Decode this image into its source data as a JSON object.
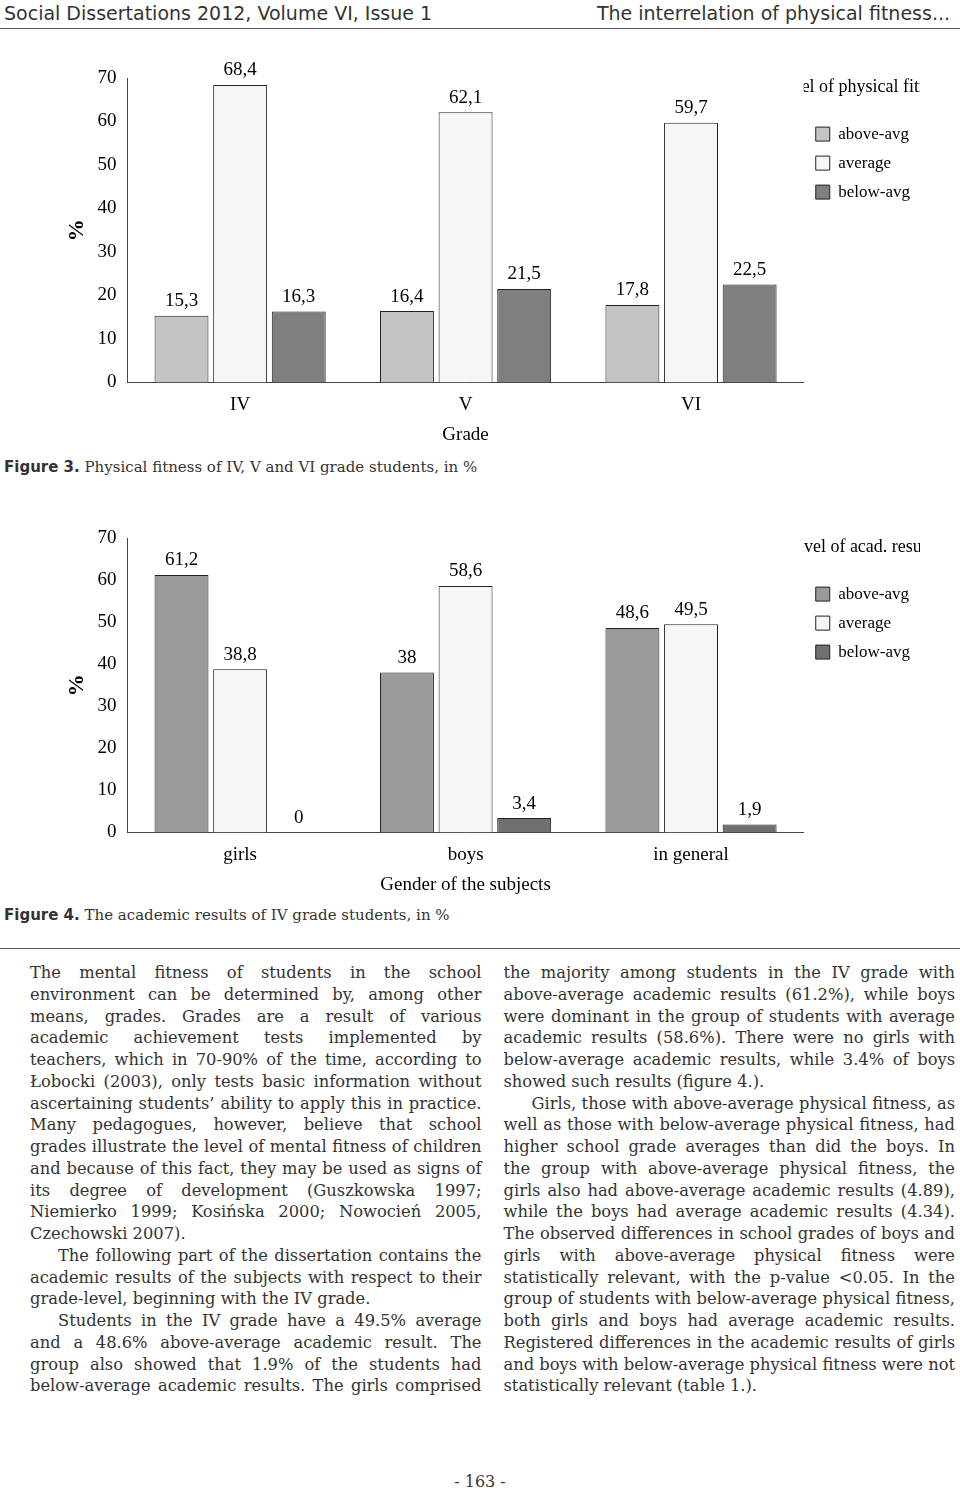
{
  "header": {
    "left": "Social Dissertations 2012, Volume VI, Issue 1",
    "right": "The interrelation of physical fitness..."
  },
  "figures": [
    {
      "label": "Figure 3.",
      "caption": "Physical fitness of IV, V and VI grade students, in %"
    },
    {
      "label": "Figure 4.",
      "caption": "The academic results of IV grade students, in %"
    }
  ],
  "chart_data": [
    {
      "type": "bar",
      "xlabel": "Grade",
      "ylabel": "%",
      "legend_title": "Level of physical fitness",
      "categories": [
        "IV",
        "V",
        "VI"
      ],
      "series": [
        {
          "name": "above-avg",
          "color": "#c4c4c4",
          "values": [
            15.3,
            16.4,
            17.8
          ],
          "value_labels": [
            "15,3",
            "16,4",
            "17,8"
          ]
        },
        {
          "name": "average",
          "color": "#f6f6f6",
          "values": [
            68.4,
            62.1,
            59.7
          ],
          "value_labels": [
            "68,4",
            "62,1",
            "59,7"
          ]
        },
        {
          "name": "below-avg",
          "color": "#7f7f7f",
          "values": [
            16.3,
            21.5,
            22.5
          ],
          "value_labels": [
            "16,3",
            "21,5",
            "22,5"
          ]
        }
      ],
      "ylim": [
        0,
        70
      ],
      "yticks": [
        0,
        10,
        20,
        30,
        40,
        50,
        60,
        70
      ],
      "grid": false,
      "legend": "right",
      "data_labels": true
    },
    {
      "type": "bar",
      "xlabel": "Gender of the subjects",
      "ylabel": "%",
      "legend_title": "Level of acad. results",
      "categories": [
        "girls",
        "boys",
        "in general"
      ],
      "series": [
        {
          "name": "above-avg",
          "color": "#9a9a9a",
          "values": [
            61.2,
            38,
            48.6
          ],
          "value_labels": [
            "61,2",
            "38",
            "48,6"
          ]
        },
        {
          "name": "average",
          "color": "#f6f6f6",
          "values": [
            38.8,
            58.6,
            49.5
          ],
          "value_labels": [
            "38,8",
            "58,6",
            "49,5"
          ]
        },
        {
          "name": "below-avg",
          "color": "#707070",
          "values": [
            0,
            3.4,
            1.9
          ],
          "value_labels": [
            "0",
            "3,4",
            "1,9"
          ]
        }
      ],
      "ylim": [
        0,
        70
      ],
      "yticks": [
        0,
        10,
        20,
        30,
        40,
        50,
        60,
        70
      ],
      "grid": false,
      "legend": "right",
      "data_labels": true
    }
  ],
  "body": [
    "The mental fitness of students in the school environment can be determined by, among other means, grades. Grades are a result of various academic achievement tests implemented by teachers, which in 70-90% of the time, according to Łobocki (2003), only tests basic information without ascertaining students’ ability to apply this in practice. Many pedagogues, however, believe that school grades illustrate the level of mental fitness of children and because of this fact, they may be used as signs of its degree of development (Guszkowska 1997; Niemierko 1999; Kosińska 2000; Nowocień 2005, Czechowski 2007).",
    "The following part of the dissertation contains the academic results of the subjects with respect to their grade-level, beginning with the IV grade.",
    "Students in the IV grade have a 49.5% average and a 48.6% above-average academic result. The group also showed that 1.9% of the students had below-average academic results. The girls comprised the majority among students in the IV grade with above-average academic results (61.2%), while boys were dominant in the group of students with average academic results (58.6%). There were no girls with below-average academic results, while 3.4% of boys showed such results (figure 4.).",
    "Girls, those with above-average physical fitness, as well as those with below-average physical fitness, had higher school grade averages than did the boys. In the group with above-average physical fitness, the girls also had above-average academic results (4.89), while the boys had average academic results (4.34). The observed differences in school grades of boys and girls with above-average physical fitness were statistically relevant, with the p-value <0.05. In the group of students with below-average physical fitness, both girls and boys had average academic results. Registered differences in the academic results of girls and boys with below-average physical fitness were not statistically relevant (table 1.)."
  ],
  "page_number": "- 163 -"
}
